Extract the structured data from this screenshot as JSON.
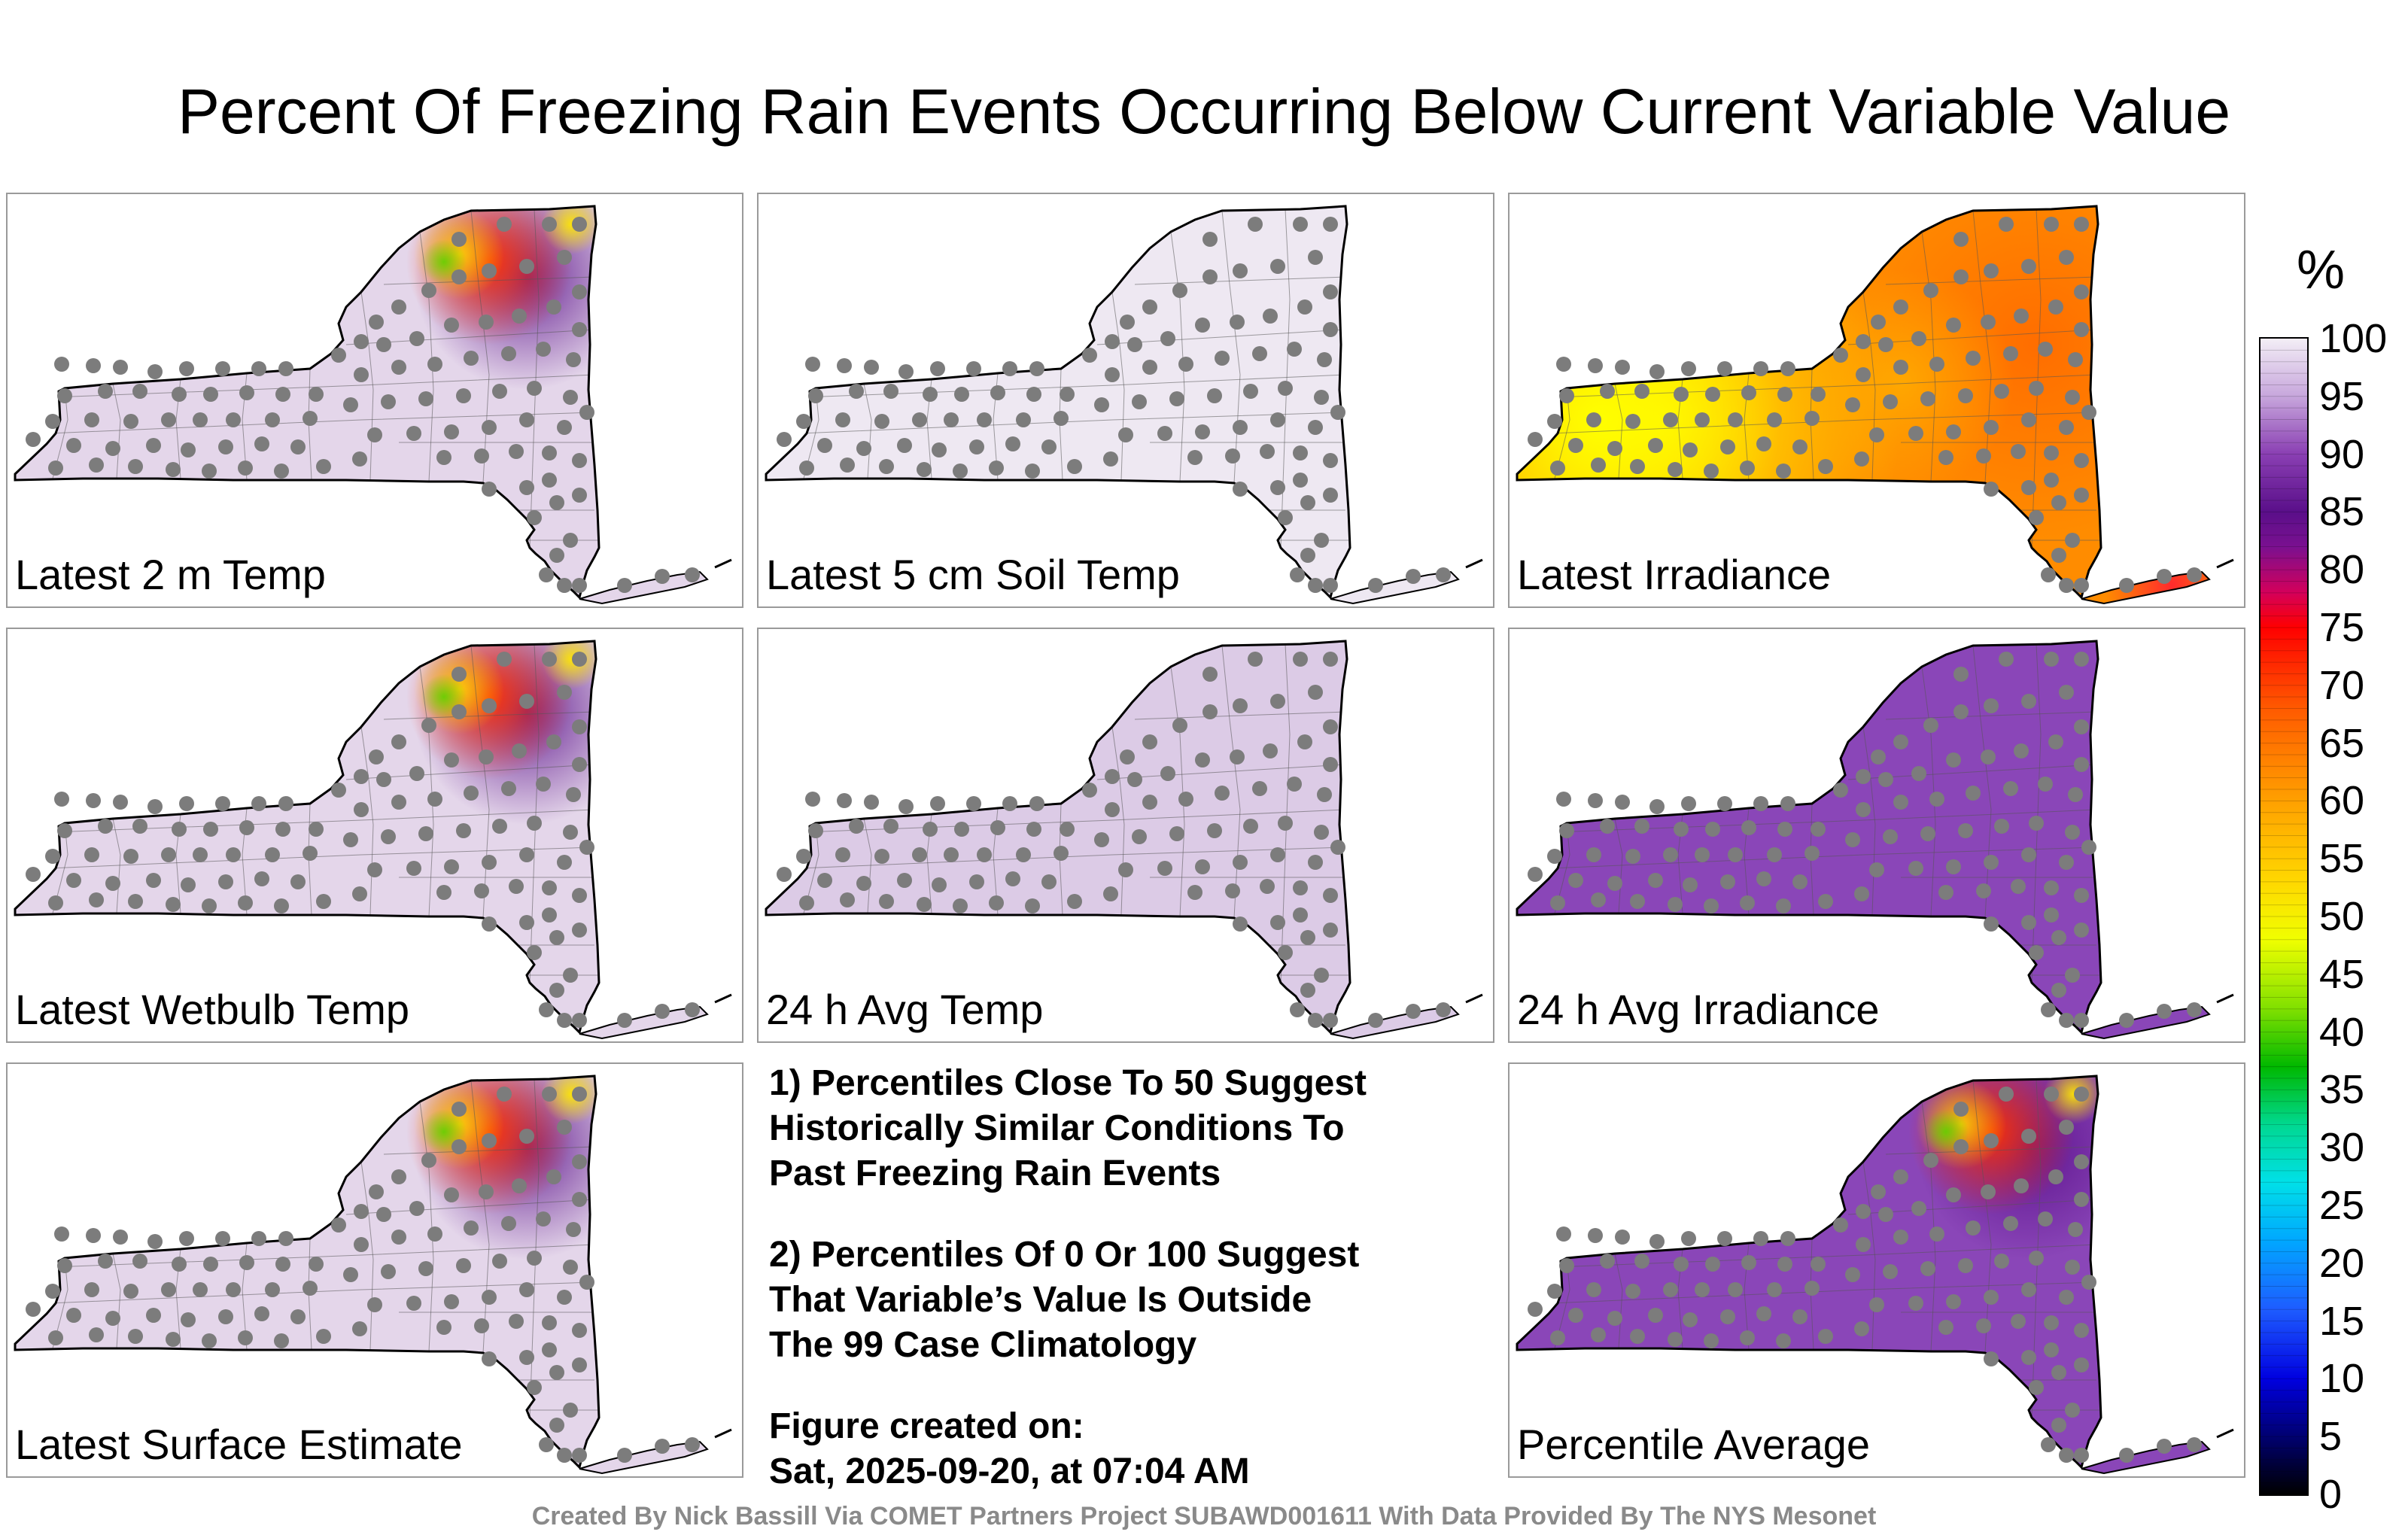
{
  "title": "Percent Of Freezing Rain Events Occurring Below Current Variable Value",
  "colorbar": {
    "unit": "%",
    "ticks": [
      "100",
      "95",
      "90",
      "85",
      "80",
      "75",
      "70",
      "65",
      "60",
      "55",
      "50",
      "45",
      "40",
      "35",
      "30",
      "25",
      "20",
      "15",
      "10",
      "5",
      "0"
    ]
  },
  "panels": [
    {
      "label": "Latest 2 m Temp",
      "base": "#e4d6ea",
      "hot": "high"
    },
    {
      "label": "Latest 5 cm Soil Temp",
      "base": "#eee8f2",
      "hot": "none"
    },
    {
      "label": "Latest Irradiance",
      "base": "#ff8c00",
      "hot": "irr"
    },
    {
      "label": "Latest Wetbulb Temp",
      "base": "#e4d6ea",
      "hot": "high"
    },
    {
      "label": "24 h Avg Temp",
      "base": "#dccbe6",
      "hot": "none"
    },
    {
      "label": "24 h Avg Irradiance",
      "base": "#8a46b8",
      "hot": "none"
    },
    {
      "label": "Latest Surface Estimate",
      "base": "#e4d6ea",
      "hot": "high"
    },
    {
      "label": "Percentile Average",
      "base": "#8a46b8",
      "hot": "high"
    }
  ],
  "notes": {
    "note1_line1": "1) Percentiles Close To 50 Suggest",
    "note1_line2": "Historically Similar Conditions To",
    "note1_line3": "Past Freezing Rain Events",
    "note2_line1": "2) Percentiles Of 0 Or 100 Suggest",
    "note2_line2": "That Variable’s Value Is Outside",
    "note2_line3": "The 99 Case Climatology",
    "created_label": "Figure created on:",
    "created_value": "Sat, 2025-09-20, at 07:04 AM"
  },
  "footer": "Created By Nick Bassill Via COMET Partners Project SUBAWD001611 With Data Provided By The NYS Mesonet"
}
